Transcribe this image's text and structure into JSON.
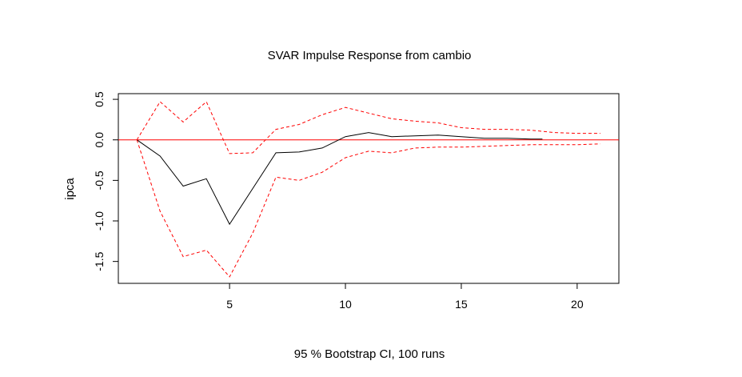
{
  "chart_data": {
    "type": "line",
    "title": "SVAR Impulse Response from cambio",
    "xlabel": "95 % Bootstrap CI,  100 runs",
    "ylabel": "ipca",
    "xlim": [
      0.2,
      21.8
    ],
    "ylim": [
      -1.77,
      0.57
    ],
    "x_ticks": [
      5,
      10,
      15,
      20
    ],
    "y_ticks": [
      -1.5,
      -1.0,
      -0.5,
      0.0,
      0.5
    ],
    "x_tick_labels": [
      "5",
      "10",
      "15",
      "20"
    ],
    "y_tick_labels": [
      "-1.5",
      "-1.0",
      "-0.5",
      "0.0",
      "0.5"
    ],
    "grid": false,
    "reference_line": {
      "y": 0,
      "color": "#ff0000"
    },
    "series": [
      {
        "color": "#000000",
        "dash": "solid",
        "x": [
          1,
          2,
          3,
          4,
          5,
          6,
          7,
          8,
          9,
          10,
          11,
          12,
          13,
          14,
          15,
          16,
          17,
          18,
          18.5
        ],
        "y": [
          0.0,
          -0.2,
          -0.57,
          -0.48,
          -1.04,
          -0.6,
          -0.16,
          -0.15,
          -0.1,
          0.04,
          0.09,
          0.04,
          0.05,
          0.06,
          0.04,
          0.02,
          0.02,
          0.01,
          0.01
        ]
      },
      {
        "color": "#ff0000",
        "dash": "dashed",
        "x": [
          1,
          2,
          3,
          4,
          5,
          6,
          7,
          8,
          9,
          10,
          11,
          12,
          13,
          14,
          15,
          16,
          17,
          18,
          19,
          20,
          21
        ],
        "y": [
          0.0,
          0.47,
          0.22,
          0.47,
          -0.17,
          -0.16,
          0.13,
          0.19,
          0.31,
          0.4,
          0.33,
          0.26,
          0.23,
          0.21,
          0.15,
          0.13,
          0.13,
          0.12,
          0.09,
          0.08,
          0.08
        ]
      },
      {
        "color": "#ff0000",
        "dash": "dashed",
        "x": [
          1,
          2,
          3,
          4,
          5,
          6,
          7,
          8,
          9,
          10,
          11,
          12,
          13,
          14,
          15,
          16,
          17,
          18,
          19,
          20,
          21
        ],
        "y": [
          0.0,
          -0.88,
          -1.44,
          -1.36,
          -1.69,
          -1.15,
          -0.46,
          -0.5,
          -0.4,
          -0.22,
          -0.14,
          -0.16,
          -0.1,
          -0.09,
          -0.09,
          -0.08,
          -0.07,
          -0.06,
          -0.06,
          -0.06,
          -0.05
        ]
      }
    ]
  }
}
